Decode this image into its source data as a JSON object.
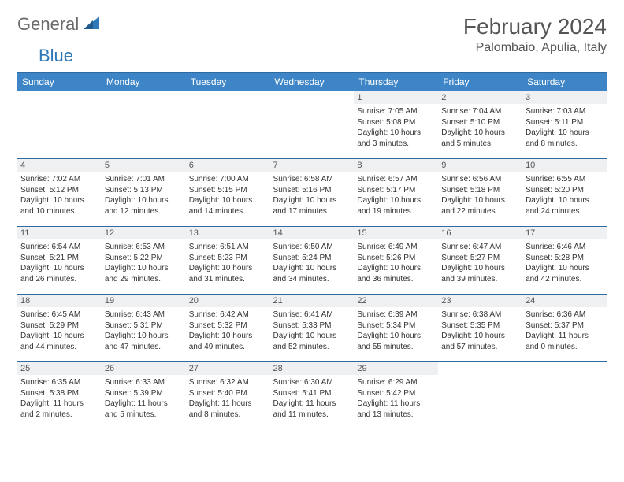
{
  "brand": {
    "general": "General",
    "blue": "Blue"
  },
  "title": "February 2024",
  "location": "Palombaio, Apulia, Italy",
  "colors": {
    "header_bg": "#3d85c6",
    "header_border": "#2f6aa0",
    "daynum_bg": "#eef0f2",
    "brand_gray": "#6b6b6b",
    "brand_blue": "#2f78b7",
    "text": "#333333"
  },
  "typography": {
    "title_fontsize": 28,
    "location_fontsize": 16,
    "weekday_fontsize": 12,
    "daynum_fontsize": 11,
    "cell_fontsize": 10
  },
  "weekdays": [
    "Sunday",
    "Monday",
    "Tuesday",
    "Wednesday",
    "Thursday",
    "Friday",
    "Saturday"
  ],
  "weeks": [
    [
      {
        "day": ""
      },
      {
        "day": ""
      },
      {
        "day": ""
      },
      {
        "day": ""
      },
      {
        "day": "1",
        "sunrise": "Sunrise: 7:05 AM",
        "sunset": "Sunset: 5:08 PM",
        "daylight": "Daylight: 10 hours and 3 minutes."
      },
      {
        "day": "2",
        "sunrise": "Sunrise: 7:04 AM",
        "sunset": "Sunset: 5:10 PM",
        "daylight": "Daylight: 10 hours and 5 minutes."
      },
      {
        "day": "3",
        "sunrise": "Sunrise: 7:03 AM",
        "sunset": "Sunset: 5:11 PM",
        "daylight": "Daylight: 10 hours and 8 minutes."
      }
    ],
    [
      {
        "day": "4",
        "sunrise": "Sunrise: 7:02 AM",
        "sunset": "Sunset: 5:12 PM",
        "daylight": "Daylight: 10 hours and 10 minutes."
      },
      {
        "day": "5",
        "sunrise": "Sunrise: 7:01 AM",
        "sunset": "Sunset: 5:13 PM",
        "daylight": "Daylight: 10 hours and 12 minutes."
      },
      {
        "day": "6",
        "sunrise": "Sunrise: 7:00 AM",
        "sunset": "Sunset: 5:15 PM",
        "daylight": "Daylight: 10 hours and 14 minutes."
      },
      {
        "day": "7",
        "sunrise": "Sunrise: 6:58 AM",
        "sunset": "Sunset: 5:16 PM",
        "daylight": "Daylight: 10 hours and 17 minutes."
      },
      {
        "day": "8",
        "sunrise": "Sunrise: 6:57 AM",
        "sunset": "Sunset: 5:17 PM",
        "daylight": "Daylight: 10 hours and 19 minutes."
      },
      {
        "day": "9",
        "sunrise": "Sunrise: 6:56 AM",
        "sunset": "Sunset: 5:18 PM",
        "daylight": "Daylight: 10 hours and 22 minutes."
      },
      {
        "day": "10",
        "sunrise": "Sunrise: 6:55 AM",
        "sunset": "Sunset: 5:20 PM",
        "daylight": "Daylight: 10 hours and 24 minutes."
      }
    ],
    [
      {
        "day": "11",
        "sunrise": "Sunrise: 6:54 AM",
        "sunset": "Sunset: 5:21 PM",
        "daylight": "Daylight: 10 hours and 26 minutes."
      },
      {
        "day": "12",
        "sunrise": "Sunrise: 6:53 AM",
        "sunset": "Sunset: 5:22 PM",
        "daylight": "Daylight: 10 hours and 29 minutes."
      },
      {
        "day": "13",
        "sunrise": "Sunrise: 6:51 AM",
        "sunset": "Sunset: 5:23 PM",
        "daylight": "Daylight: 10 hours and 31 minutes."
      },
      {
        "day": "14",
        "sunrise": "Sunrise: 6:50 AM",
        "sunset": "Sunset: 5:24 PM",
        "daylight": "Daylight: 10 hours and 34 minutes."
      },
      {
        "day": "15",
        "sunrise": "Sunrise: 6:49 AM",
        "sunset": "Sunset: 5:26 PM",
        "daylight": "Daylight: 10 hours and 36 minutes."
      },
      {
        "day": "16",
        "sunrise": "Sunrise: 6:47 AM",
        "sunset": "Sunset: 5:27 PM",
        "daylight": "Daylight: 10 hours and 39 minutes."
      },
      {
        "day": "17",
        "sunrise": "Sunrise: 6:46 AM",
        "sunset": "Sunset: 5:28 PM",
        "daylight": "Daylight: 10 hours and 42 minutes."
      }
    ],
    [
      {
        "day": "18",
        "sunrise": "Sunrise: 6:45 AM",
        "sunset": "Sunset: 5:29 PM",
        "daylight": "Daylight: 10 hours and 44 minutes."
      },
      {
        "day": "19",
        "sunrise": "Sunrise: 6:43 AM",
        "sunset": "Sunset: 5:31 PM",
        "daylight": "Daylight: 10 hours and 47 minutes."
      },
      {
        "day": "20",
        "sunrise": "Sunrise: 6:42 AM",
        "sunset": "Sunset: 5:32 PM",
        "daylight": "Daylight: 10 hours and 49 minutes."
      },
      {
        "day": "21",
        "sunrise": "Sunrise: 6:41 AM",
        "sunset": "Sunset: 5:33 PM",
        "daylight": "Daylight: 10 hours and 52 minutes."
      },
      {
        "day": "22",
        "sunrise": "Sunrise: 6:39 AM",
        "sunset": "Sunset: 5:34 PM",
        "daylight": "Daylight: 10 hours and 55 minutes."
      },
      {
        "day": "23",
        "sunrise": "Sunrise: 6:38 AM",
        "sunset": "Sunset: 5:35 PM",
        "daylight": "Daylight: 10 hours and 57 minutes."
      },
      {
        "day": "24",
        "sunrise": "Sunrise: 6:36 AM",
        "sunset": "Sunset: 5:37 PM",
        "daylight": "Daylight: 11 hours and 0 minutes."
      }
    ],
    [
      {
        "day": "25",
        "sunrise": "Sunrise: 6:35 AM",
        "sunset": "Sunset: 5:38 PM",
        "daylight": "Daylight: 11 hours and 2 minutes."
      },
      {
        "day": "26",
        "sunrise": "Sunrise: 6:33 AM",
        "sunset": "Sunset: 5:39 PM",
        "daylight": "Daylight: 11 hours and 5 minutes."
      },
      {
        "day": "27",
        "sunrise": "Sunrise: 6:32 AM",
        "sunset": "Sunset: 5:40 PM",
        "daylight": "Daylight: 11 hours and 8 minutes."
      },
      {
        "day": "28",
        "sunrise": "Sunrise: 6:30 AM",
        "sunset": "Sunset: 5:41 PM",
        "daylight": "Daylight: 11 hours and 11 minutes."
      },
      {
        "day": "29",
        "sunrise": "Sunrise: 6:29 AM",
        "sunset": "Sunset: 5:42 PM",
        "daylight": "Daylight: 11 hours and 13 minutes."
      },
      {
        "day": ""
      },
      {
        "day": ""
      }
    ]
  ]
}
